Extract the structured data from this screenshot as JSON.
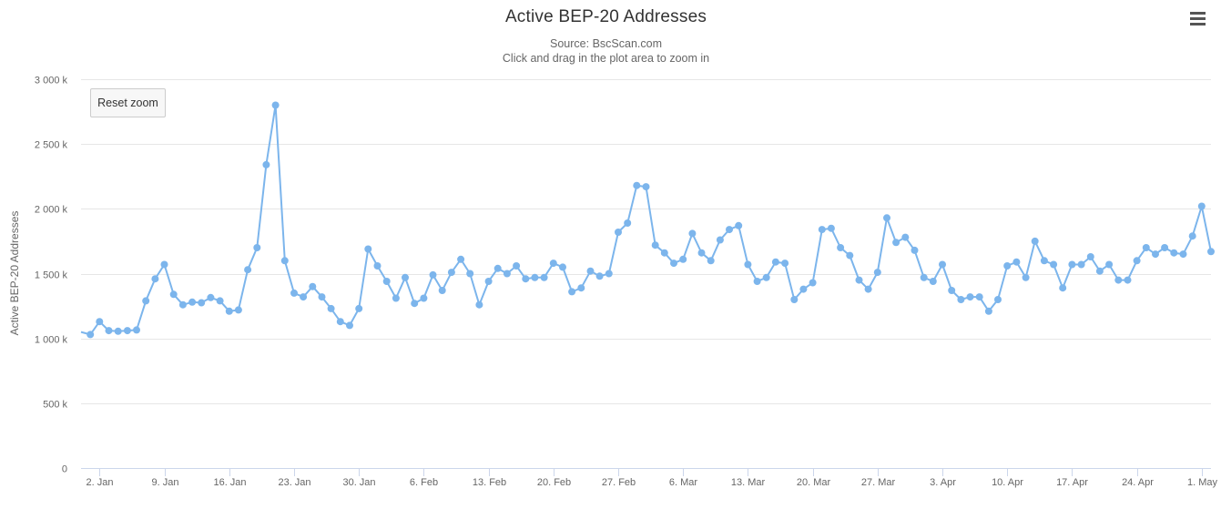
{
  "toolbar": {
    "menu_icon": "hamburger-menu-icon",
    "reset_zoom_label": "Reset zoom"
  },
  "chart_data": {
    "type": "line",
    "title": "Active BEP-20 Addresses",
    "subtitle": "Source: BscScan.com",
    "subtitle2": "Click and drag in the plot area to zoom in",
    "xlabel": "",
    "ylabel": "Active BEP-20 Addresses",
    "color": "#7cb5ec",
    "grid": "horizontal",
    "ylim": [
      0,
      3000000
    ],
    "y_ticks": [
      0,
      500000,
      1000000,
      1500000,
      2000000,
      2500000,
      3000000
    ],
    "y_tick_labels": [
      "0",
      "500 k",
      "1 000 k",
      "1 500 k",
      "2 000 k",
      "2 500 k",
      "3 000 k"
    ],
    "x_ticks": [
      "2021-01-02",
      "2021-01-09",
      "2021-01-16",
      "2021-01-23",
      "2021-01-30",
      "2021-02-06",
      "2021-02-13",
      "2021-02-20",
      "2021-02-27",
      "2021-03-06",
      "2021-03-13",
      "2021-03-20",
      "2021-03-27",
      "2021-04-03",
      "2021-04-10",
      "2021-04-17",
      "2021-04-24",
      "2021-05-01"
    ],
    "x_tick_labels": [
      "2. Jan",
      "9. Jan",
      "16. Jan",
      "23. Jan",
      "30. Jan",
      "6. Feb",
      "13. Feb",
      "20. Feb",
      "27. Feb",
      "6. Mar",
      "13. Mar",
      "20. Mar",
      "27. Mar",
      "3. Apr",
      "10. Apr",
      "17. Apr",
      "24. Apr",
      "1. May"
    ],
    "series": [
      {
        "x": [
          "2020-12-31",
          "2021-01-01",
          "2021-01-02",
          "2021-01-03",
          "2021-01-04",
          "2021-01-05",
          "2021-01-06",
          "2021-01-07",
          "2021-01-08",
          "2021-01-09",
          "2021-01-10",
          "2021-01-11",
          "2021-01-12",
          "2021-01-13",
          "2021-01-14",
          "2021-01-15",
          "2021-01-16",
          "2021-01-17",
          "2021-01-18",
          "2021-01-19",
          "2021-01-20",
          "2021-01-21",
          "2021-01-22",
          "2021-01-23",
          "2021-01-24",
          "2021-01-25",
          "2021-01-26",
          "2021-01-27",
          "2021-01-28",
          "2021-01-29",
          "2021-01-30",
          "2021-01-31",
          "2021-02-01",
          "2021-02-02",
          "2021-02-03",
          "2021-02-04",
          "2021-02-05",
          "2021-02-06",
          "2021-02-07",
          "2021-02-08",
          "2021-02-09",
          "2021-02-10",
          "2021-02-11",
          "2021-02-12",
          "2021-02-13",
          "2021-02-14",
          "2021-02-15",
          "2021-02-16",
          "2021-02-17",
          "2021-02-18",
          "2021-02-19",
          "2021-02-20",
          "2021-02-21",
          "2021-02-22",
          "2021-02-23",
          "2021-02-24",
          "2021-02-25",
          "2021-02-26",
          "2021-02-27",
          "2021-02-28",
          "2021-03-01",
          "2021-03-02",
          "2021-03-03",
          "2021-03-04",
          "2021-03-05",
          "2021-03-06",
          "2021-03-07",
          "2021-03-08",
          "2021-03-09",
          "2021-03-10",
          "2021-03-11",
          "2021-03-12",
          "2021-03-13",
          "2021-03-14",
          "2021-03-15",
          "2021-03-16",
          "2021-03-17",
          "2021-03-18",
          "2021-03-19",
          "2021-03-20",
          "2021-03-21",
          "2021-03-22",
          "2021-03-23",
          "2021-03-24",
          "2021-03-25",
          "2021-03-26",
          "2021-03-27",
          "2021-03-28",
          "2021-03-29",
          "2021-03-30",
          "2021-03-31",
          "2021-04-01",
          "2021-04-02",
          "2021-04-03",
          "2021-04-04",
          "2021-04-05",
          "2021-04-06",
          "2021-04-07",
          "2021-04-08",
          "2021-04-09",
          "2021-04-10",
          "2021-04-11",
          "2021-04-12",
          "2021-04-13",
          "2021-04-14",
          "2021-04-15",
          "2021-04-16",
          "2021-04-17",
          "2021-04-18",
          "2021-04-19",
          "2021-04-20",
          "2021-04-21",
          "2021-04-22",
          "2021-04-23",
          "2021-04-24",
          "2021-04-25",
          "2021-04-26",
          "2021-04-27",
          "2021-04-28",
          "2021-04-29",
          "2021-04-30",
          "2021-05-01",
          "2021-05-02"
        ],
        "values": [
          1050000,
          1030000,
          1130000,
          1060000,
          1055000,
          1060000,
          1065000,
          1290000,
          1460000,
          1570000,
          1340000,
          1260000,
          1280000,
          1275000,
          1315000,
          1290000,
          1210000,
          1220000,
          1530000,
          1700000,
          2340000,
          2800000,
          1600000,
          1350000,
          1320000,
          1400000,
          1320000,
          1230000,
          1130000,
          1100000,
          1230000,
          1690000,
          1560000,
          1440000,
          1310000,
          1470000,
          1270000,
          1310000,
          1490000,
          1370000,
          1510000,
          1610000,
          1500000,
          1260000,
          1440000,
          1540000,
          1500000,
          1560000,
          1460000,
          1470000,
          1470000,
          1580000,
          1550000,
          1360000,
          1390000,
          1520000,
          1480000,
          1500000,
          1820000,
          1890000,
          2180000,
          2170000,
          1720000,
          1660000,
          1580000,
          1610000,
          1810000,
          1660000,
          1600000,
          1760000,
          1840000,
          1870000,
          1570000,
          1440000,
          1470000,
          1590000,
          1580000,
          1300000,
          1380000,
          1430000,
          1840000,
          1850000,
          1700000,
          1640000,
          1450000,
          1380000,
          1510000,
          1930000,
          1740000,
          1780000,
          1680000,
          1470000,
          1440000,
          1570000,
          1370000,
          1300000,
          1320000,
          1320000,
          1210000,
          1300000,
          1560000,
          1590000,
          1470000,
          1750000,
          1600000,
          1570000,
          1390000,
          1570000,
          1570000,
          1630000,
          1520000,
          1570000,
          1450000,
          1450000,
          1600000,
          1700000,
          1650000,
          1700000,
          1660000,
          1650000,
          1790000,
          2020000,
          1670000
        ]
      }
    ]
  }
}
